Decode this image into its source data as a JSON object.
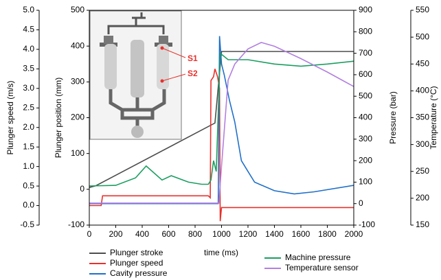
{
  "chart_data": {
    "type": "line",
    "xlabel": "time (ms)",
    "xlim": [
      0,
      2000
    ],
    "xticks": [
      0,
      200,
      400,
      600,
      800,
      1000,
      1200,
      1400,
      1600,
      1800,
      2000
    ],
    "axes": [
      {
        "label": "Plunger speed (m/s)",
        "lim": [
          -0.5,
          5.0
        ],
        "ticks": [
          {
            "value": -0.5,
            "label": "-0.5"
          },
          {
            "value": 0,
            "label": "0.0"
          },
          {
            "value": 0.5,
            "label": "0.5"
          },
          {
            "value": 1,
            "label": "1.0"
          },
          {
            "value": 1.5,
            "label": "1.5"
          },
          {
            "value": 2,
            "label": "2.0"
          },
          {
            "value": 2.5,
            "label": "2.5"
          },
          {
            "value": 3,
            "label": "3.0"
          },
          {
            "value": 3.5,
            "label": "3.5"
          },
          {
            "value": 4,
            "label": "4.0"
          },
          {
            "value": 4.5,
            "label": "4.5"
          },
          {
            "value": 5,
            "label": "5.0"
          }
        ]
      },
      {
        "label": "Plunger position (mm)",
        "lim": [
          -100,
          500
        ],
        "ticks": [
          -100,
          0,
          100,
          200,
          300,
          400,
          500
        ]
      },
      {
        "label": "Pressure (bar)",
        "lim": [
          -100,
          900
        ],
        "ticks": [
          -100,
          0,
          100,
          200,
          300,
          400,
          500,
          600,
          700,
          800,
          900
        ]
      },
      {
        "label": "Temperature (°C)",
        "lim": [
          150,
          550
        ],
        "ticks": [
          150,
          200,
          250,
          300,
          350,
          400,
          450,
          500,
          550
        ]
      }
    ],
    "series": [
      {
        "name": "Plunger stroke",
        "color": "#4d4d4d",
        "axis": 1,
        "x": [
          0,
          50,
          950,
          1000,
          2000
        ],
        "values": [
          5,
          10,
          185,
          385,
          385
        ]
      },
      {
        "name": "Plunger speed",
        "color": "#e8302c",
        "axis": 0,
        "x": [
          0,
          90,
          100,
          900,
          915,
          920,
          940,
          950,
          970,
          985,
          990,
          1000,
          2000
        ],
        "values": [
          0,
          0,
          0.25,
          0.25,
          0.2,
          3.2,
          3.3,
          3.5,
          3.3,
          3.0,
          -0.4,
          -0.05,
          -0.05
        ]
      },
      {
        "name": "Cavity pressure",
        "color": "#1f6fc9",
        "axis": 2,
        "x": [
          0,
          975,
          985,
          1000,
          1020,
          1060,
          1100,
          1150,
          1200,
          1250,
          1400,
          1550,
          1700,
          2000
        ],
        "values": [
          0,
          0,
          780,
          650,
          600,
          480,
          380,
          200,
          150,
          100,
          60,
          45,
          55,
          85
        ]
      },
      {
        "name": "Machine pressure",
        "color": "#1a9e60",
        "axis": 2,
        "x": [
          0,
          200,
          350,
          430,
          550,
          620,
          750,
          850,
          900,
          920,
          940,
          960,
          990,
          1050,
          1200,
          1400,
          1600,
          1800,
          2000
        ],
        "values": [
          82,
          85,
          120,
          175,
          110,
          130,
          100,
          90,
          90,
          110,
          200,
          150,
          700,
          670,
          670,
          650,
          640,
          650,
          663
        ]
      },
      {
        "name": "Temperature sensor",
        "color": "#b27fe0",
        "axis": 3,
        "x": [
          0,
          980,
          1000,
          1050,
          1100,
          1200,
          1300,
          1400,
          1600,
          1800,
          2000
        ],
        "values": [
          191,
          191,
          260,
          420,
          450,
          478,
          490,
          483,
          460,
          435,
          408
        ]
      }
    ],
    "annotations": [
      "S1",
      "S2"
    ]
  }
}
